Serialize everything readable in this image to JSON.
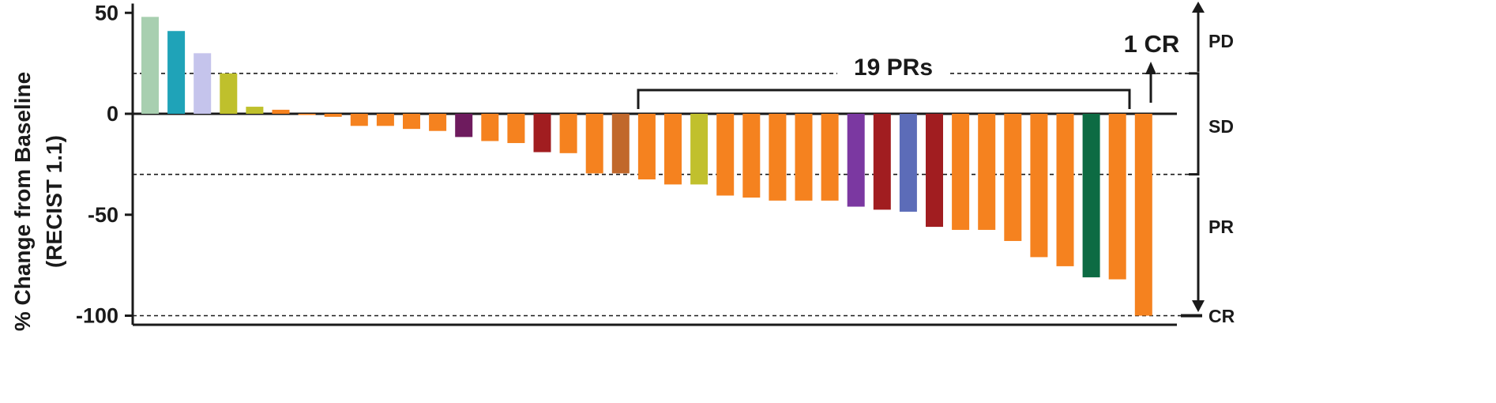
{
  "chart_data": {
    "type": "bar",
    "ylabel_line1": "% Change from Baseline",
    "ylabel_line2": "(RECIST 1.1)",
    "ylim": [
      -105,
      55
    ],
    "yticks": [
      {
        "value": 50,
        "label": "50"
      },
      {
        "value": 0,
        "label": "0"
      },
      {
        "value": -50,
        "label": "-50"
      },
      {
        "value": -100,
        "label": "-100"
      }
    ],
    "reference_lines": [
      20,
      -30,
      -100
    ],
    "values": [
      48,
      41,
      30,
      20,
      3.5,
      2,
      -0.5,
      -1.5,
      -6,
      -6,
      -7.5,
      -8.5,
      -11.5,
      -13.5,
      -14.5,
      -19,
      -19.5,
      -29.5,
      -29.5,
      -32.5,
      -35,
      -35,
      -40.5,
      -41.5,
      -43,
      -43,
      -43,
      -46,
      -47.5,
      -48.5,
      -56,
      -57.5,
      -57.5,
      -63,
      -71,
      -75.5,
      -81,
      -82,
      -100
    ],
    "colors": [
      "#a8cfb0",
      "#1fa3b8",
      "#c5c4ec",
      "#bfc02c",
      "#bfc02c",
      "#f5821f",
      "#f5821f",
      "#f5821f",
      "#f5821f",
      "#f5821f",
      "#f5821f",
      "#f5821f",
      "#6e1b5e",
      "#f5821f",
      "#f5821f",
      "#a11d20",
      "#f5821f",
      "#f5821f",
      "#c1682b",
      "#f5821f",
      "#f5821f",
      "#c1c02d",
      "#f5821f",
      "#f5821f",
      "#f5821f",
      "#f5821f",
      "#f5821f",
      "#7b38a1",
      "#a11d20",
      "#5c6cb8",
      "#a11d20",
      "#f5821f",
      "#f5821f",
      "#f5821f",
      "#f5821f",
      "#f5821f",
      "#0d6b43",
      "#f5821f",
      "#f5821f"
    ],
    "response_categories": [
      "PD",
      "SD",
      "PR",
      "CR"
    ],
    "annotations": {
      "pr_count": "19 PRs",
      "cr_count": "1 CR"
    }
  }
}
